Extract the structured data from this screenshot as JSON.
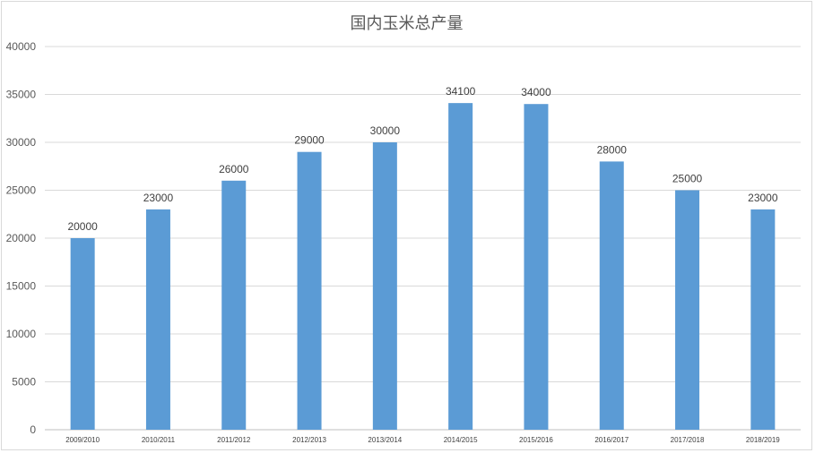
{
  "chart_data": {
    "type": "bar",
    "title": "国内玉米总产量",
    "categories": [
      "2009/2010",
      "2010/2011",
      "2011/2012",
      "2012/2013",
      "2013/2014",
      "2014/2015",
      "2015/2016",
      "2016/2017",
      "2017/2018",
      "2018/2019"
    ],
    "values": [
      20000,
      23000,
      26000,
      29000,
      30000,
      34100,
      34000,
      28000,
      25000,
      23000
    ],
    "ylim": [
      0,
      40000
    ],
    "yticks": [
      0,
      5000,
      10000,
      15000,
      20000,
      25000,
      30000,
      35000,
      40000
    ],
    "grid": true,
    "bar_color": "#5b9bd5",
    "data_labels": true
  }
}
